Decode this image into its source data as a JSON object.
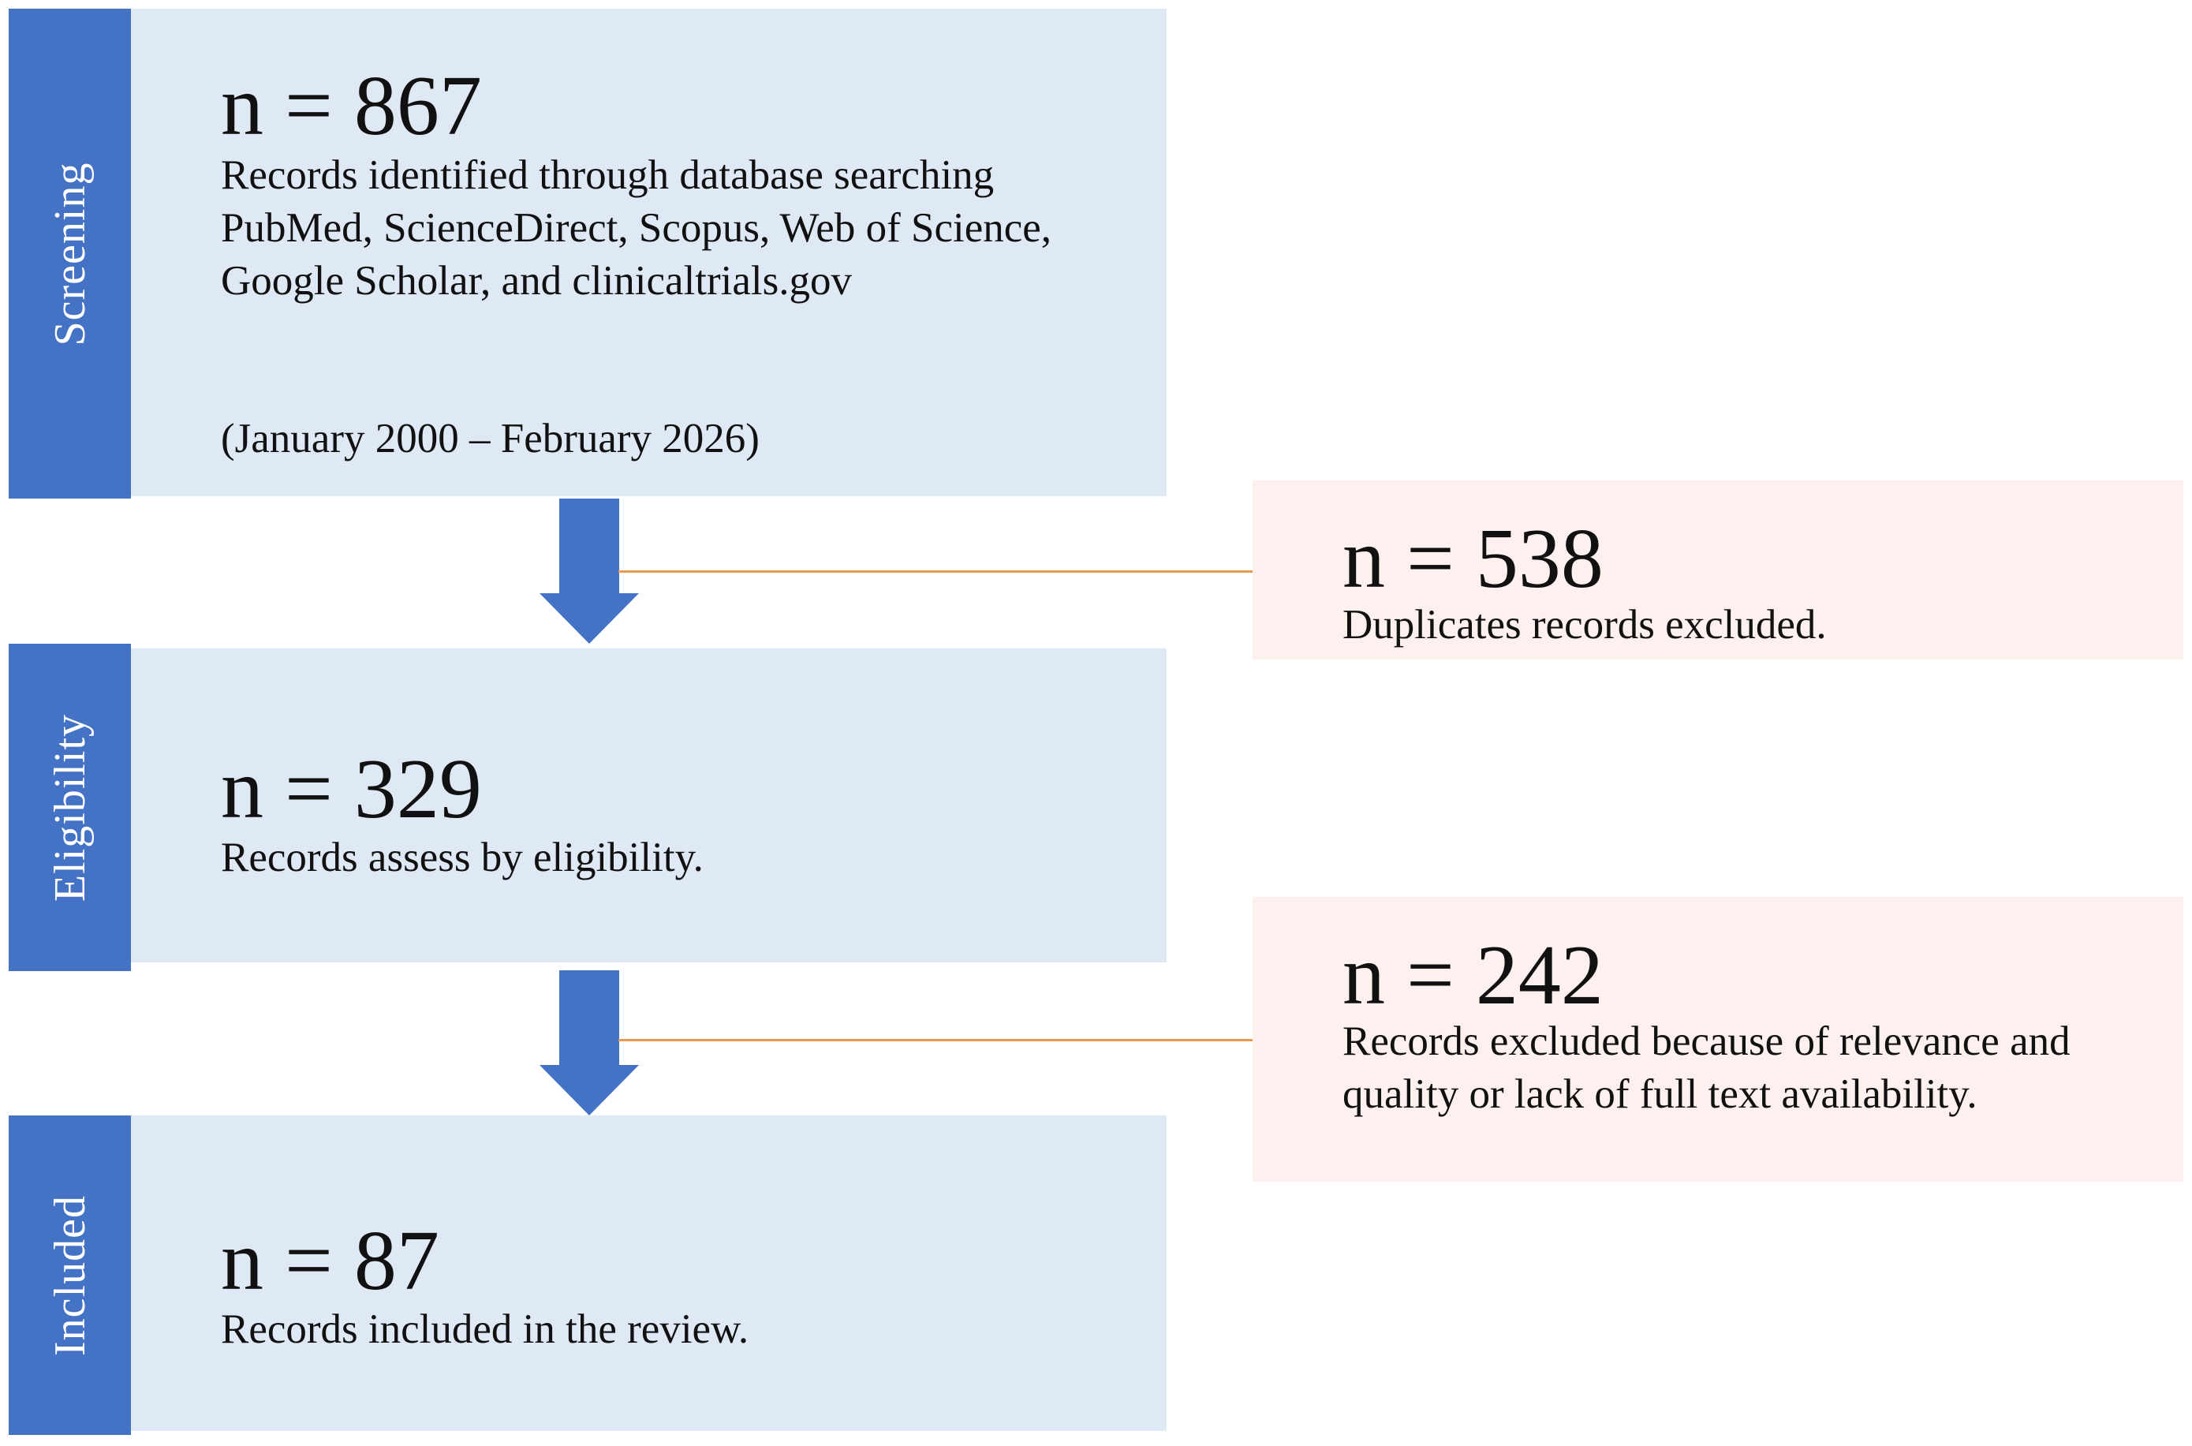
{
  "stages": {
    "screening": {
      "label": "Screening",
      "count": "n = 867",
      "description": "Records identified through database searching PubMed, ScienceDirect, Scopus, Web of Science, Google Scholar, and clinicaltrials.gov",
      "period": "(January 2000 – February 2026)"
    },
    "eligibility": {
      "label": "Eligibility",
      "count": "n = 329",
      "description": "Records assess by eligibility."
    },
    "included": {
      "label": "Included",
      "count": "n = 87",
      "description": "Records included in the review."
    }
  },
  "exclusions": {
    "duplicates": {
      "count": "n = 538",
      "description": "Duplicates records excluded."
    },
    "relevance": {
      "count": "n = 242",
      "description": "Records excluded because of relevance and quality or lack of full text availability."
    }
  },
  "colors": {
    "stage_tab": "#4472c4",
    "stage_box": "#dfe8f5",
    "exclusion_box": "#fdf0ef",
    "arrow": "#4472c4",
    "connector": "#e89a52"
  }
}
